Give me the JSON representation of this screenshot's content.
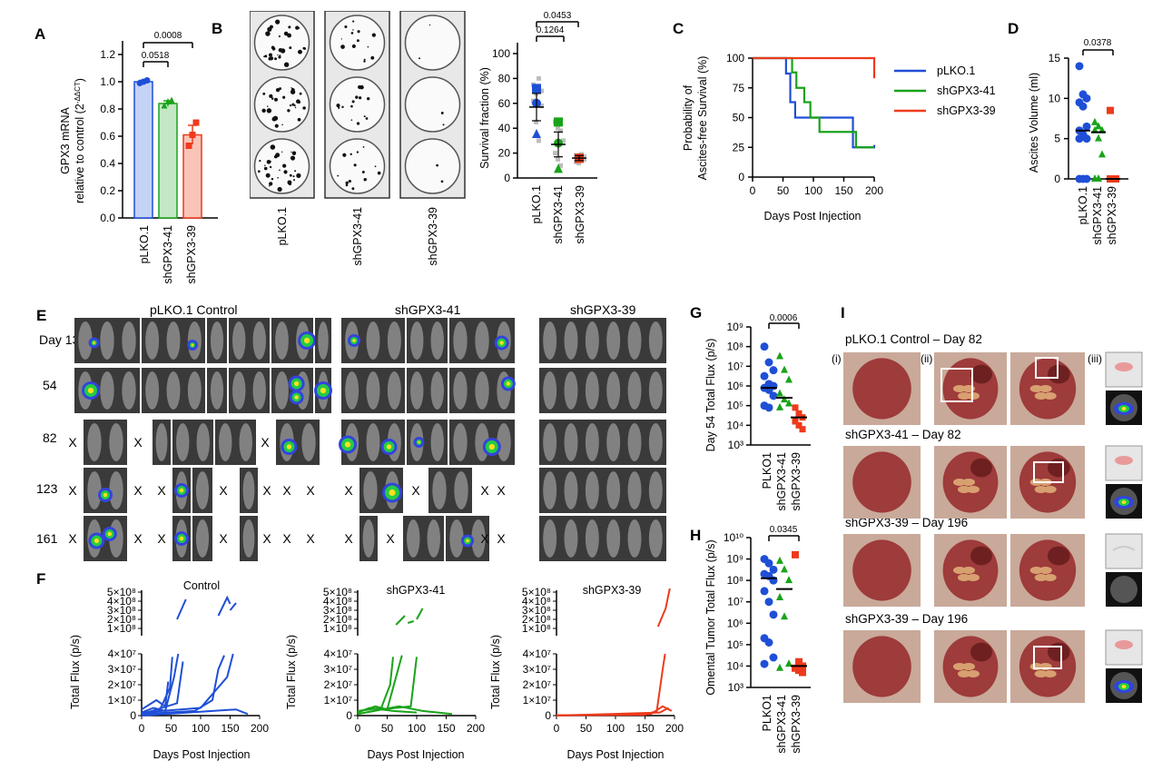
{
  "colors": {
    "blue": "#1f4fd6",
    "green": "#1aa31a",
    "red": "#ee3a1c",
    "gray": "#9e9e9e"
  },
  "panelA": {
    "letter": "A",
    "ylabel1": "GPX3 mRNA",
    "ylabel2": "relative to control (2",
    "ylabel_sup": "-ΔΔCT",
    "ylabel_end": ")",
    "yticks": [
      "0.0",
      "0.2",
      "0.4",
      "0.6",
      "0.8",
      "1.0",
      "1.2"
    ],
    "pvals": [
      "0.0518",
      "0.0008"
    ],
    "groups": [
      "pLKO.1",
      "shGPX3-41",
      "shGPX3-39"
    ],
    "chart_data": {
      "type": "bar",
      "categories": [
        "pLKO.1",
        "shGPX3-41",
        "shGPX3-39"
      ],
      "values": [
        1.0,
        0.84,
        0.61
      ],
      "errors": [
        0.01,
        0.02,
        0.07
      ],
      "ylim": [
        0,
        1.2
      ],
      "ylabel": "GPX3 mRNA relative to control (2-ΔΔCT)"
    }
  },
  "panelB": {
    "letter": "B",
    "plates": [
      "pLKO.1",
      "shGPX3-41",
      "shGPX3-39"
    ],
    "ylabel": "Survival fraction (%)",
    "yticks": [
      "0",
      "20",
      "40",
      "60",
      "80",
      "100"
    ],
    "pvals": [
      "0.1264",
      "0.0453"
    ],
    "groups": [
      "pLKO.1",
      "shGPX3-41",
      "shGPX3-39"
    ],
    "chart_data": {
      "type": "scatter",
      "categories": [
        "pLKO.1",
        "shGPX3-41",
        "shGPX3-39"
      ],
      "means": [
        57,
        27,
        16
      ],
      "sem": [
        11,
        10,
        2
      ],
      "ylim": [
        0,
        100
      ],
      "ylabel": "Survival fraction (%)"
    }
  },
  "panelC": {
    "letter": "C",
    "ylabel1": "Probability of",
    "ylabel2": "Ascites-free Survival (%)",
    "xlabel": "Days Post Injection",
    "xticks": [
      "0",
      "50",
      "100",
      "150",
      "200"
    ],
    "yticks": [
      "0",
      "25",
      "50",
      "75",
      "100"
    ],
    "legend": [
      "pLKO.1",
      "shGPX3-41",
      "shGPX3-39"
    ],
    "chart_data": {
      "type": "line",
      "xlim": [
        0,
        200
      ],
      "ylim": [
        0,
        100
      ],
      "xlabel": "Days Post Injection",
      "ylabel": "Probability of Ascites-free Survival (%)",
      "series": [
        {
          "name": "pLKO.1",
          "x": [
            0,
            50,
            55,
            62,
            70,
            78,
            165,
            200
          ],
          "y": [
            100,
            100,
            87,
            63,
            50,
            50,
            25,
            27
          ]
        },
        {
          "name": "shGPX3-41",
          "x": [
            0,
            58,
            65,
            72,
            85,
            95,
            110,
            170,
            200
          ],
          "y": [
            100,
            100,
            88,
            75,
            63,
            50,
            38,
            25,
            25
          ]
        },
        {
          "name": "shGPX3-39",
          "x": [
            0,
            183,
            200
          ],
          "y": [
            100,
            100,
            83
          ]
        }
      ]
    }
  },
  "panelD": {
    "letter": "D",
    "ylabel": "Ascites Volume (ml)",
    "yticks": [
      "0",
      "5",
      "10",
      "15"
    ],
    "pval": "0.0378",
    "groups": [
      "pLKO.1",
      "shGPX3-41",
      "shGPX3-39"
    ],
    "chart_data": {
      "type": "scatter",
      "categories": [
        "pLKO.1",
        "shGPX3-41",
        "shGPX3-39"
      ],
      "medians": [
        6,
        5.8,
        0
      ],
      "ylim": [
        0,
        15
      ],
      "ylabel": "Ascites Volume (ml)"
    }
  },
  "panelE": {
    "letter": "E",
    "groups": [
      "pLKO.1 Control",
      "shGPX3-41",
      "shGPX3-39"
    ],
    "days": [
      "Day 13",
      "54",
      "82",
      "123",
      "161"
    ],
    "x": "X"
  },
  "panelF": {
    "letter": "F",
    "ylabel": "Total Flux (p/s)",
    "xlabel": "Days Post Injection",
    "titles": [
      "Control",
      "shGPX3-41",
      "shGPX3-39"
    ],
    "yticks_top": [
      "5×10⁸",
      "4×10⁸",
      "3×10⁸",
      "2×10⁸",
      "1×10⁸"
    ],
    "yticks_bot": [
      "4×10⁷",
      "3×10⁷",
      "2×10⁷",
      "1×10⁷",
      "0"
    ],
    "xticks": [
      "0",
      "50",
      "100",
      "150",
      "200"
    ],
    "chart_data": {
      "type": "line",
      "xlim": [
        0,
        200
      ],
      "xlabel": "Days Post Injection",
      "ylabel": "Total Flux (p/s)",
      "note": "individual mouse bioluminescence traces, broken y axis"
    }
  },
  "panelG": {
    "letter": "G",
    "ylabel": "Day 54 Total Flux (p/s)",
    "yticks": [
      "10³",
      "10⁴",
      "10⁵",
      "10⁶",
      "10⁷",
      "10⁸",
      "10⁹"
    ],
    "pval": "0.0006",
    "groups": [
      "PLKO1",
      "shGPX3-41",
      "shGPX3-39"
    ],
    "chart_data": {
      "type": "scatter",
      "categories": [
        "PLKO1",
        "shGPX3-41",
        "shGPX3-39"
      ],
      "log_medians": [
        5.9,
        5.4,
        4.4
      ],
      "ylim": [
        1000,
        1000000000
      ],
      "ylabel": "Day 54 Total Flux (p/s)"
    }
  },
  "panelH": {
    "letter": "H",
    "ylabel": "Omental Tumor Total Flux (p/s)",
    "yticks": [
      "10³",
      "10⁴",
      "10⁵",
      "10⁶",
      "10⁷",
      "10⁸",
      "10⁹",
      "10¹⁰"
    ],
    "pval": "0.0345",
    "groups": [
      "PLKO1",
      "shGPX3-41",
      "shGPX3-39"
    ],
    "chart_data": {
      "type": "scatter",
      "categories": [
        "PLKO1",
        "shGPX3-41",
        "shGPX3-39"
      ],
      "log_medians": [
        8.1,
        7.6,
        4.0
      ],
      "ylim": [
        1000,
        10000000000
      ],
      "ylabel": "Omental Tumor Total Flux (p/s)"
    }
  },
  "panelI": {
    "letter": "I",
    "rows": [
      "pLKO.1 Control – Day 82",
      "shGPX3-41 – Day 82",
      "shGPX3-39 – Day 196",
      "shGPX3-39 – Day 196"
    ],
    "subs": [
      "(i)",
      "(ii)",
      "(iii)"
    ]
  }
}
